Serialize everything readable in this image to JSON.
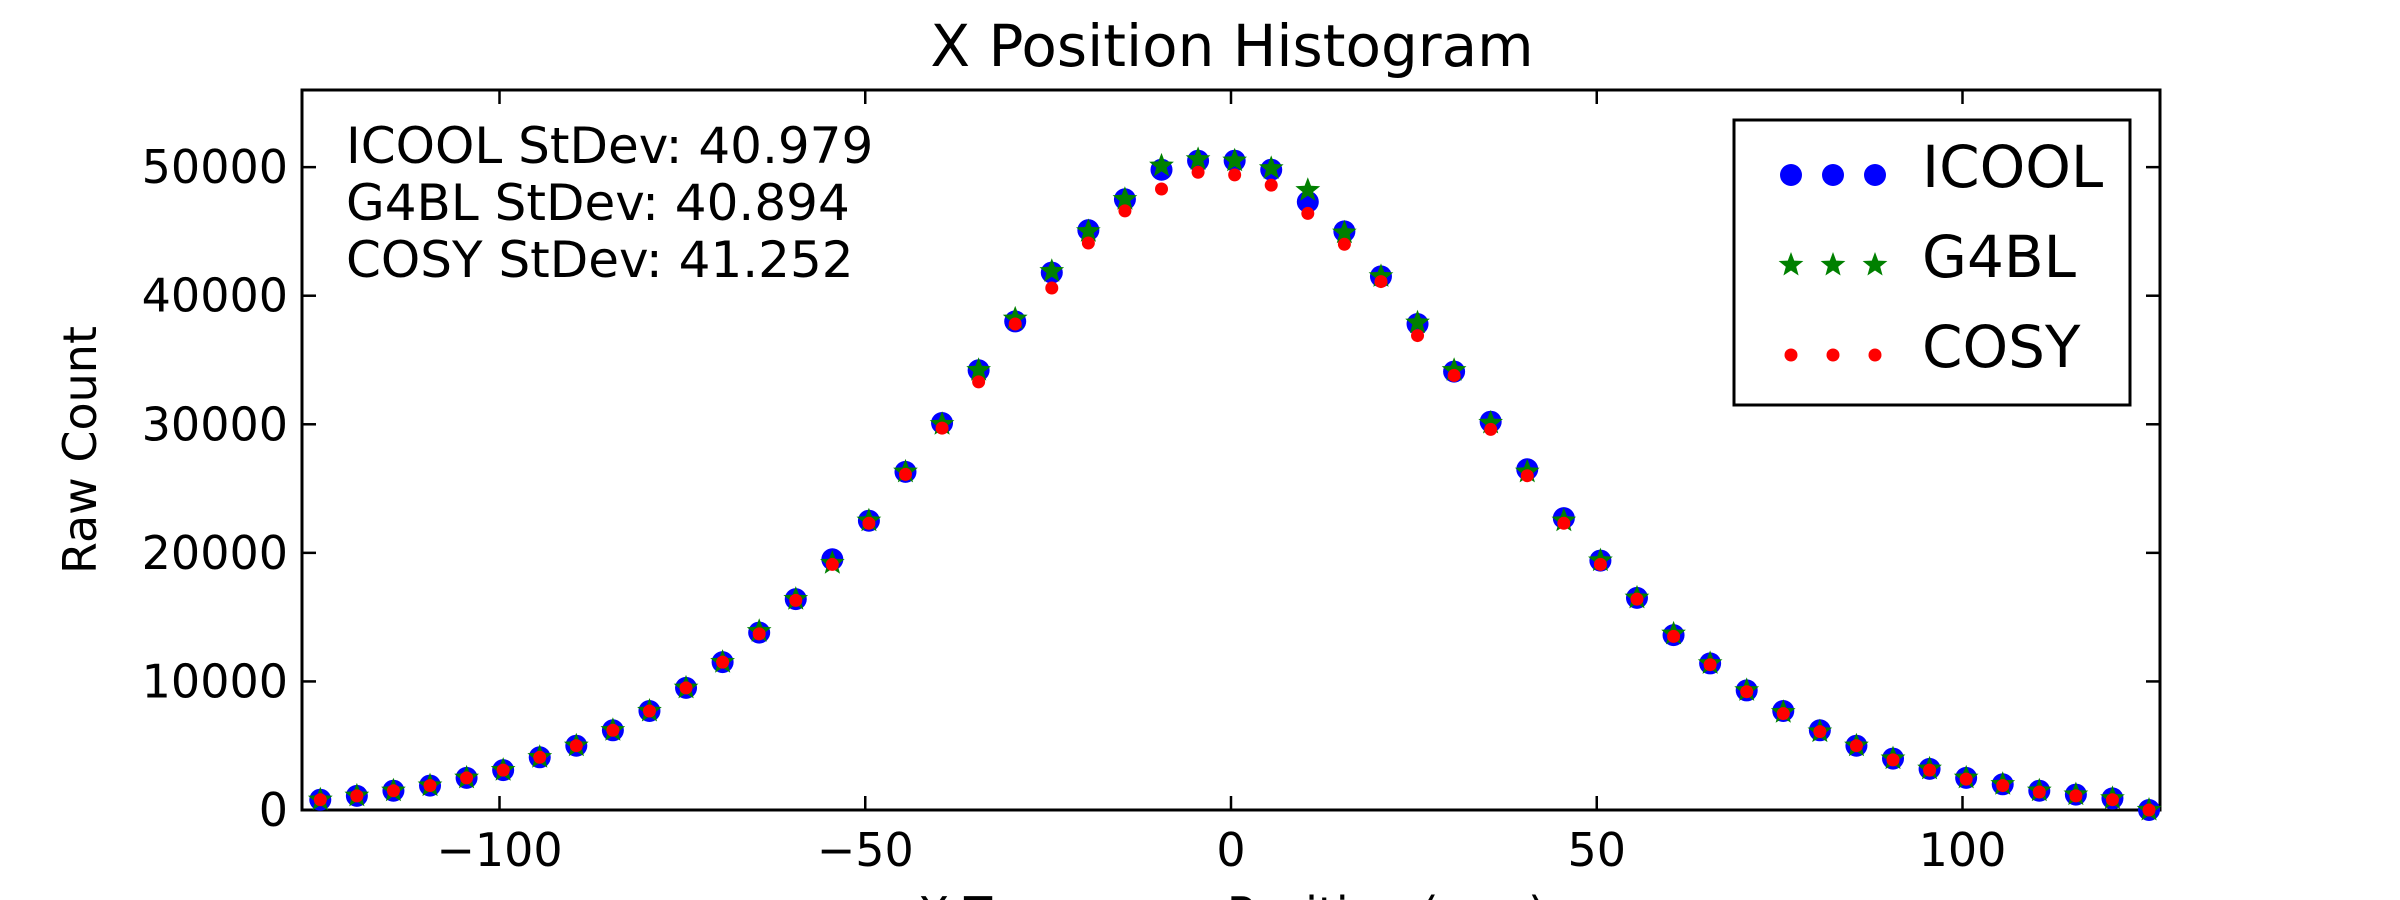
{
  "chart_data": {
    "type": "scatter",
    "title": "X Position Histogram",
    "xlabel": "X Transverse Position (mm)",
    "ylabel": "Raw Count",
    "xlim": [
      -127,
      127
    ],
    "ylim": [
      0,
      56000
    ],
    "xticks": [
      -100,
      -50,
      0,
      50,
      100
    ],
    "xtick_labels": [
      "−100",
      "−50",
      "0",
      "50",
      "100"
    ],
    "yticks": [
      0,
      10000,
      20000,
      30000,
      40000,
      50000
    ],
    "ytick_labels": [
      "0",
      "10000",
      "20000",
      "30000",
      "40000",
      "50000"
    ],
    "grid": false,
    "legend_position": "top-right",
    "annotations": [
      "ICOOL StDev: 40.979",
      "G4BL StDev: 40.894",
      "COSY StDev: 41.252"
    ],
    "x": [
      -124.5,
      -119.5,
      -114.5,
      -109.5,
      -104.5,
      -99.5,
      -94.5,
      -89.5,
      -84.5,
      -79.5,
      -74.5,
      -69.5,
      -64.5,
      -59.5,
      -54.5,
      -49.5,
      -44.5,
      -39.5,
      -34.5,
      -29.5,
      -24.5,
      -19.5,
      -14.5,
      -9.5,
      -4.5,
      0.5,
      5.5,
      10.5,
      15.5,
      20.5,
      25.5,
      30.5,
      35.5,
      40.5,
      45.5,
      50.5,
      55.5,
      60.5,
      65.5,
      70.5,
      75.5,
      80.5,
      85.5,
      90.5,
      95.5,
      100.5,
      105.5,
      110.5,
      115.5,
      120.5,
      125.5
    ],
    "series": [
      {
        "name": "ICOOL",
        "marker": "circle",
        "color": "#0000ff",
        "values": [
          800,
          1100,
          1500,
          1900,
          2500,
          3100,
          4100,
          5000,
          6200,
          7700,
          9500,
          11500,
          13800,
          16400,
          19500,
          22500,
          26300,
          30100,
          34200,
          38000,
          41800,
          45100,
          47500,
          49800,
          50500,
          50500,
          49800,
          47300,
          45000,
          41500,
          37800,
          34100,
          30200,
          26500,
          22700,
          19400,
          16500,
          13600,
          11400,
          9300,
          7700,
          6200,
          5000,
          4000,
          3200,
          2500,
          2000,
          1500,
          1200,
          900,
          0
        ]
      },
      {
        "name": "G4BL",
        "marker": "star",
        "color": "#008000",
        "values": [
          800,
          1100,
          1500,
          1900,
          2500,
          3100,
          4100,
          5000,
          6200,
          7700,
          9500,
          11500,
          13900,
          16400,
          19200,
          22500,
          26300,
          30000,
          34200,
          38200,
          41900,
          45000,
          47500,
          50100,
          50600,
          50500,
          49900,
          48200,
          44900,
          41500,
          37900,
          34200,
          30100,
          26300,
          22500,
          19400,
          16500,
          13700,
          11400,
          9300,
          7600,
          6100,
          5000,
          4000,
          3200,
          2500,
          2000,
          1500,
          1200,
          900,
          0
        ]
      },
      {
        "name": "COSY",
        "marker": "dot",
        "color": "#ff0000",
        "values": [
          800,
          1100,
          1500,
          1900,
          2500,
          3100,
          4100,
          5000,
          6200,
          7700,
          9500,
          11500,
          13700,
          16300,
          19100,
          22300,
          26100,
          29700,
          33300,
          37800,
          40600,
          44100,
          46600,
          48300,
          49600,
          49400,
          48600,
          46400,
          44000,
          41100,
          36900,
          33800,
          29600,
          26000,
          22300,
          19100,
          16400,
          13500,
          11300,
          9200,
          7500,
          6100,
          5000,
          3900,
          3100,
          2400,
          1900,
          1400,
          1100,
          800,
          0
        ]
      }
    ]
  }
}
